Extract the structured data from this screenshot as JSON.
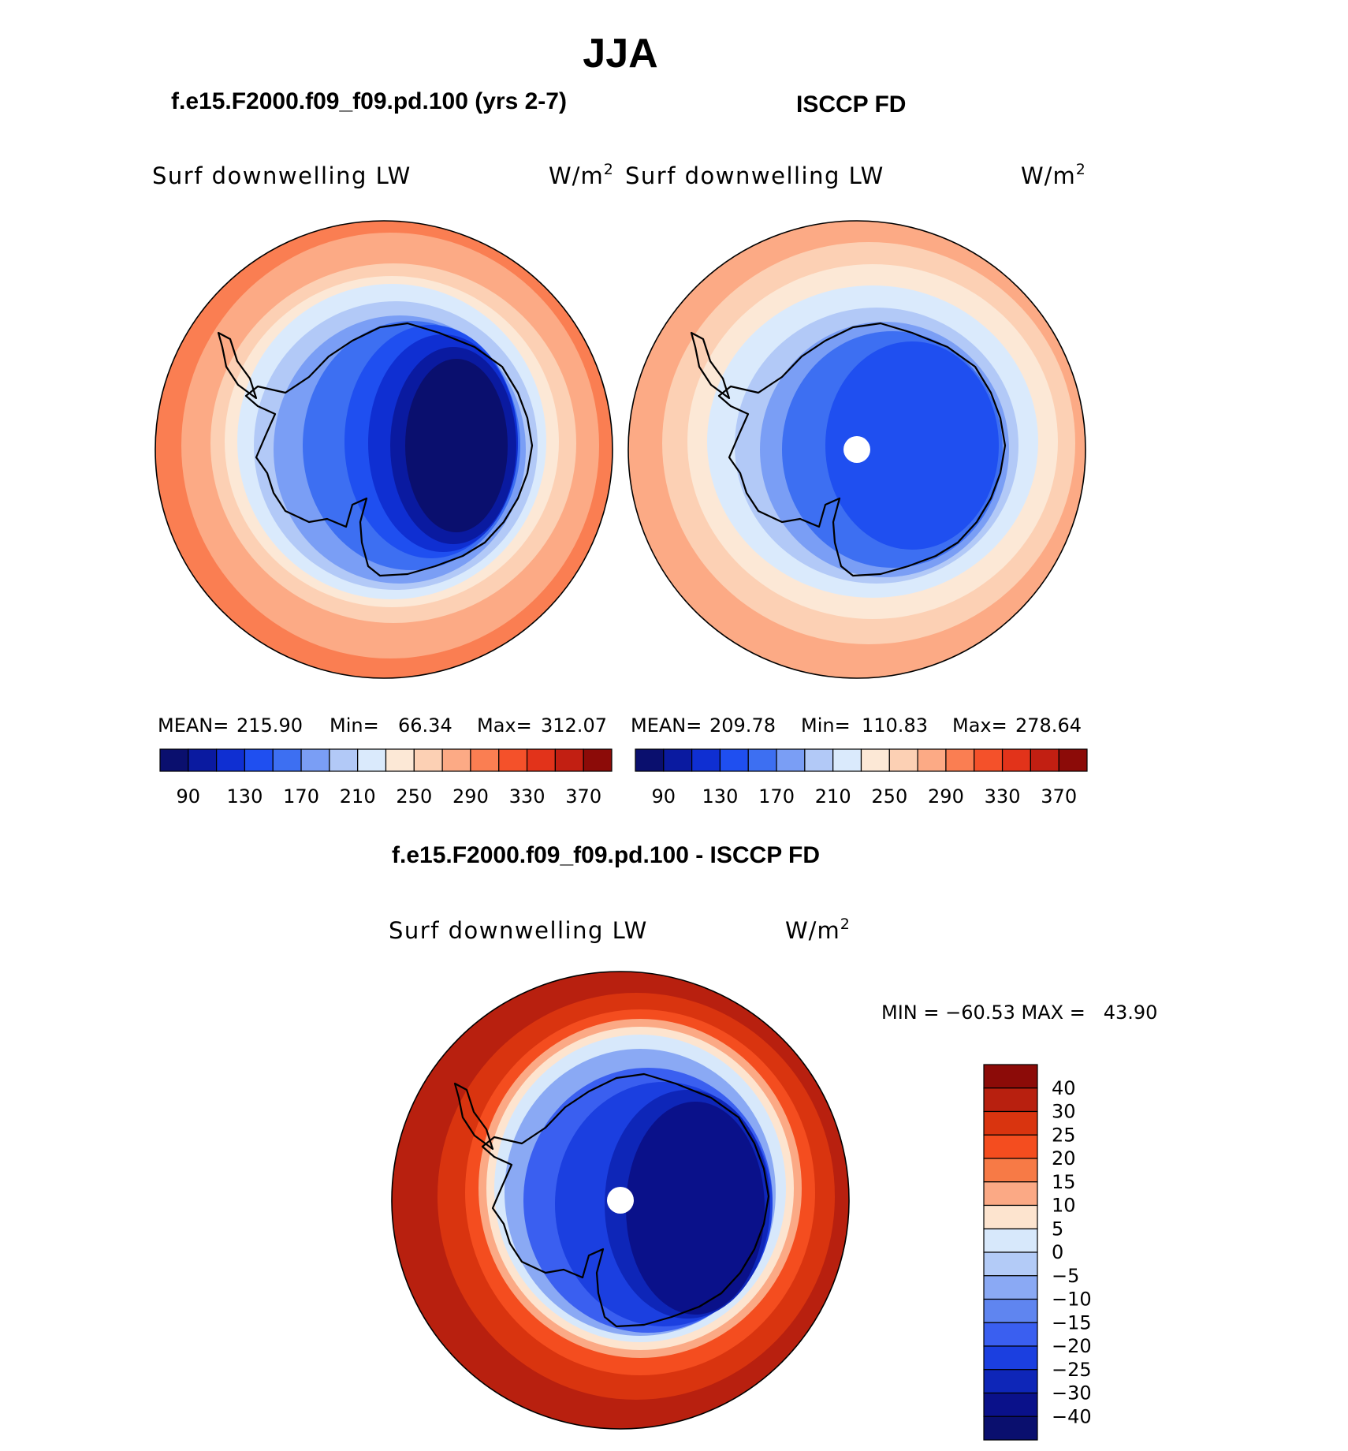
{
  "title": "JJA",
  "colors": {
    "abs_scale": [
      "#0a0f6e",
      "#0a1aa0",
      "#0f2fd2",
      "#1f4ff0",
      "#3d6ff2",
      "#7a9ef5",
      "#b2c9f7",
      "#daeafc",
      "#fce8d6",
      "#fcd0b4",
      "#fcaa85",
      "#fa7e52",
      "#f4512a",
      "#e2331a",
      "#c21f12",
      "#8c0b08"
    ],
    "diff_scale": [
      "#8c0b08",
      "#b8200f",
      "#d9340f",
      "#f44d1f",
      "#f77a46",
      "#fba985",
      "#fde4cf",
      "#d7e8fb",
      "#b3cbf7",
      "#8aa9f4",
      "#5f85f0",
      "#3a5ff0",
      "#1b3fe0",
      "#0e26b8",
      "#0a118a"
    ]
  },
  "panels": [
    {
      "id": "model",
      "case_title": "f.e15.F2000.f09_f09.pd.100 (yrs 2-7)",
      "variable": "Surf downwelling LW",
      "units": "W/m",
      "units_exp": "2",
      "stats": {
        "mean_label": "MEAN=",
        "mean": "215.90",
        "min_label": "Min=",
        "min": "66.34",
        "max_label": "Max=",
        "max": "312.07"
      },
      "colorbar_labels": [
        "90",
        "130",
        "170",
        "210",
        "250",
        "290",
        "330",
        "370"
      ]
    },
    {
      "id": "obs",
      "case_title": "ISCCP FD",
      "variable": "Surf downwelling LW",
      "units": "W/m",
      "units_exp": "2",
      "stats": {
        "mean_label": "MEAN=",
        "mean": "209.78",
        "min_label": "Min=",
        "min": "110.83",
        "max_label": "Max=",
        "max": "278.64"
      },
      "colorbar_labels": [
        "90",
        "130",
        "170",
        "210",
        "250",
        "290",
        "330",
        "370"
      ]
    }
  ],
  "diff_panel": {
    "case_title": "f.e15.F2000.f09_f09.pd.100 - ISCCP FD",
    "variable": "Surf downwelling LW",
    "units": "W/m",
    "units_exp": "2",
    "minmax": "MIN = −60.53 MAX =   43.90",
    "colorbar_labels": [
      "40",
      "30",
      "25",
      "20",
      "15",
      "10",
      "5",
      "0",
      "−5",
      "−10",
      "−15",
      "−20",
      "−25",
      "−30",
      "−40"
    ]
  },
  "chart_data": [
    {
      "type": "heatmap",
      "projection": "south-polar-stereographic",
      "title": "f.e15.F2000.f09_f09.pd.100 (yrs 2-7)",
      "field": "Surf downwelling LW",
      "units": "W/m2",
      "contour_levels": [
        90,
        110,
        130,
        150,
        170,
        190,
        210,
        230,
        250,
        270,
        290,
        310,
        330,
        350,
        370
      ],
      "mean": 215.9,
      "min": 66.34,
      "max": 312.07
    },
    {
      "type": "heatmap",
      "projection": "south-polar-stereographic",
      "title": "ISCCP FD",
      "field": "Surf downwelling LW",
      "units": "W/m2",
      "contour_levels": [
        90,
        110,
        130,
        150,
        170,
        190,
        210,
        230,
        250,
        270,
        290,
        310,
        330,
        350,
        370
      ],
      "mean": 209.78,
      "min": 110.83,
      "max": 278.64
    },
    {
      "type": "heatmap",
      "projection": "south-polar-stereographic",
      "title": "f.e15.F2000.f09_f09.pd.100 - ISCCP FD",
      "field": "Surf downwelling LW",
      "units": "W/m2",
      "contour_levels": [
        -40,
        -30,
        -25,
        -20,
        -15,
        -10,
        -5,
        0,
        5,
        10,
        15,
        20,
        25,
        30,
        40
      ],
      "min": -60.53,
      "max": 43.9
    }
  ]
}
